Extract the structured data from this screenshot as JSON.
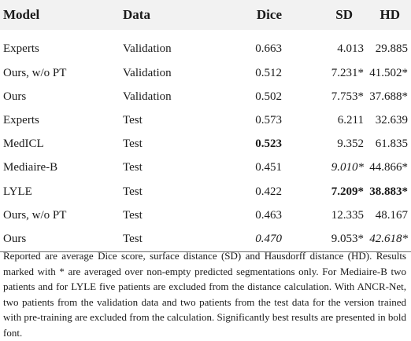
{
  "columns": [
    "Model",
    "Data",
    "Dice",
    "SD",
    "HD"
  ],
  "rows": [
    {
      "model": "Experts",
      "data": "Validation",
      "dice": "0.663",
      "sd": "4.013",
      "hd": "29.885",
      "fmt": {}
    },
    {
      "model": "Ours, w/o PT",
      "data": "Validation",
      "dice": "0.512",
      "sd": "7.231*",
      "hd": "41.502*",
      "fmt": {}
    },
    {
      "model": "Ours",
      "data": "Validation",
      "dice": "0.502",
      "sd": "7.753*",
      "hd": "37.688*",
      "fmt": {}
    },
    {
      "model": "Experts",
      "data": "Test",
      "dice": "0.573",
      "sd": "6.211",
      "hd": "32.639",
      "fmt": {}
    },
    {
      "model": "MedICL",
      "data": "Test",
      "dice": "0.523",
      "sd": "9.352",
      "hd": "61.835",
      "fmt": {
        "dice": "bold"
      }
    },
    {
      "model": "Mediaire-B",
      "data": "Test",
      "dice": "0.451",
      "sd": "9.010*",
      "hd": "44.866*",
      "fmt": {
        "sd": "italic"
      }
    },
    {
      "model": "LYLE",
      "data": "Test",
      "dice": "0.422",
      "sd": "7.209*",
      "hd": "38.883*",
      "fmt": {
        "sd": "bold",
        "hd": "bold"
      }
    },
    {
      "model": "Ours, w/o PT",
      "data": "Test",
      "dice": "0.463",
      "sd": "12.335",
      "hd": "48.167",
      "fmt": {}
    },
    {
      "model": "Ours",
      "data": "Test",
      "dice": "0.470",
      "sd": "9.053*",
      "hd": "42.618*",
      "fmt": {
        "dice": "italic",
        "hd": "italic"
      }
    }
  ],
  "caption": "Reported are average Dice score, surface distance (SD) and Hausdorff distance (HD). Results marked with * are averaged over non-empty predicted segmentations only. For Mediaire-B two patients and for LYLE five patients are excluded from the distance calculation. With ANCR-Net, two patients from the validation data and two patients from the test data for the version trained with pre-training are excluded from the calculation. Significantly best results are presented in bold font."
}
